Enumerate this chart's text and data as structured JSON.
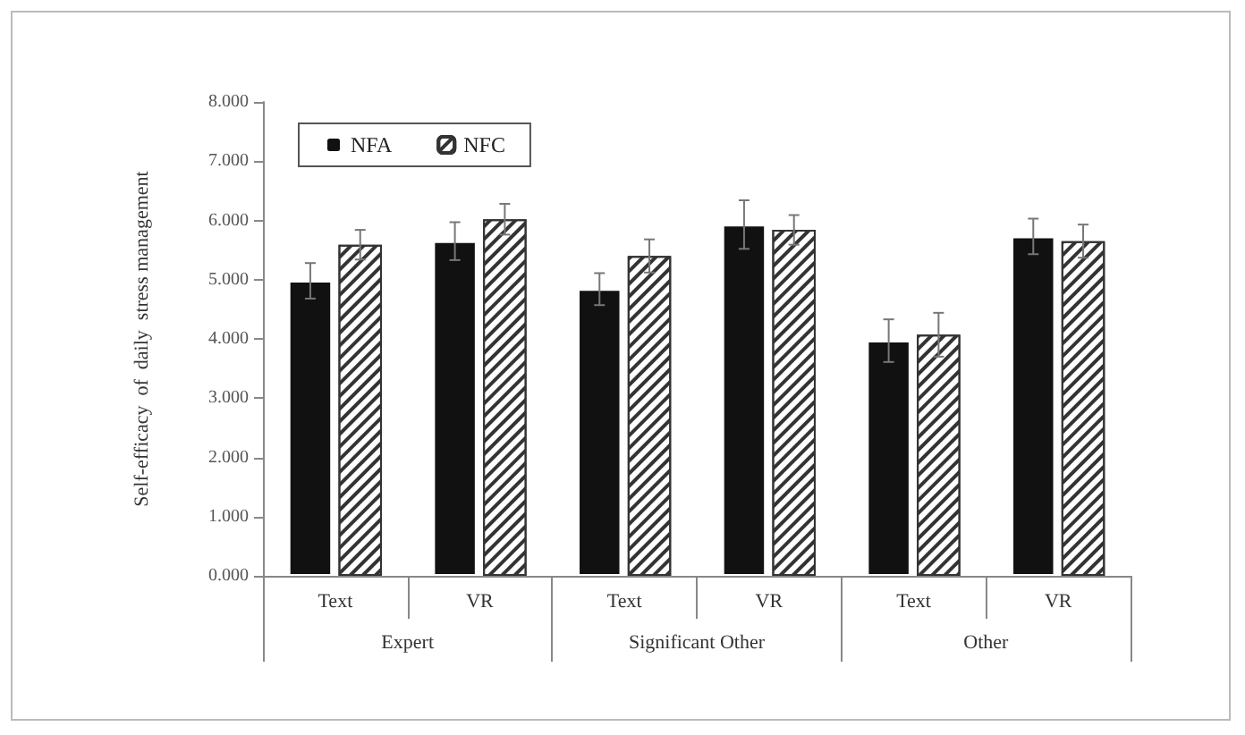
{
  "chart_data": {
    "type": "bar",
    "ylabel": "Self-efficacy  of  daily  stress management",
    "categories": [
      "Text",
      "VR",
      "Text",
      "VR",
      "Text",
      "VR"
    ],
    "annotations": [
      "Expert",
      "Significant Other",
      "Other"
    ],
    "series": [
      {
        "name": "NFA",
        "color": "#111111",
        "values": [
          4.98,
          5.65,
          4.84,
          5.93,
          3.97,
          5.73
        ],
        "errors": [
          0.3,
          0.32,
          0.27,
          0.41,
          0.36,
          0.3
        ]
      },
      {
        "name": "NFC",
        "color": "#333333",
        "values": [
          5.59,
          6.02,
          5.4,
          5.84,
          4.07,
          5.65
        ],
        "errors": [
          0.25,
          0.26,
          0.28,
          0.25,
          0.37,
          0.28
        ]
      }
    ],
    "ylim": [
      0,
      8
    ],
    "yticks": [
      {
        "value": 0,
        "label": "0.000"
      },
      {
        "value": 1,
        "label": "1.000"
      },
      {
        "value": 2,
        "label": "2.000"
      },
      {
        "value": 3,
        "label": "3.000"
      },
      {
        "value": 4,
        "label": "4.000"
      },
      {
        "value": 5,
        "label": "5.000"
      },
      {
        "value": 6,
        "label": "6.000"
      },
      {
        "value": 7,
        "label": "7.000"
      },
      {
        "value": 8,
        "label": "8.000"
      }
    ],
    "grid": false,
    "legend": "top left"
  }
}
